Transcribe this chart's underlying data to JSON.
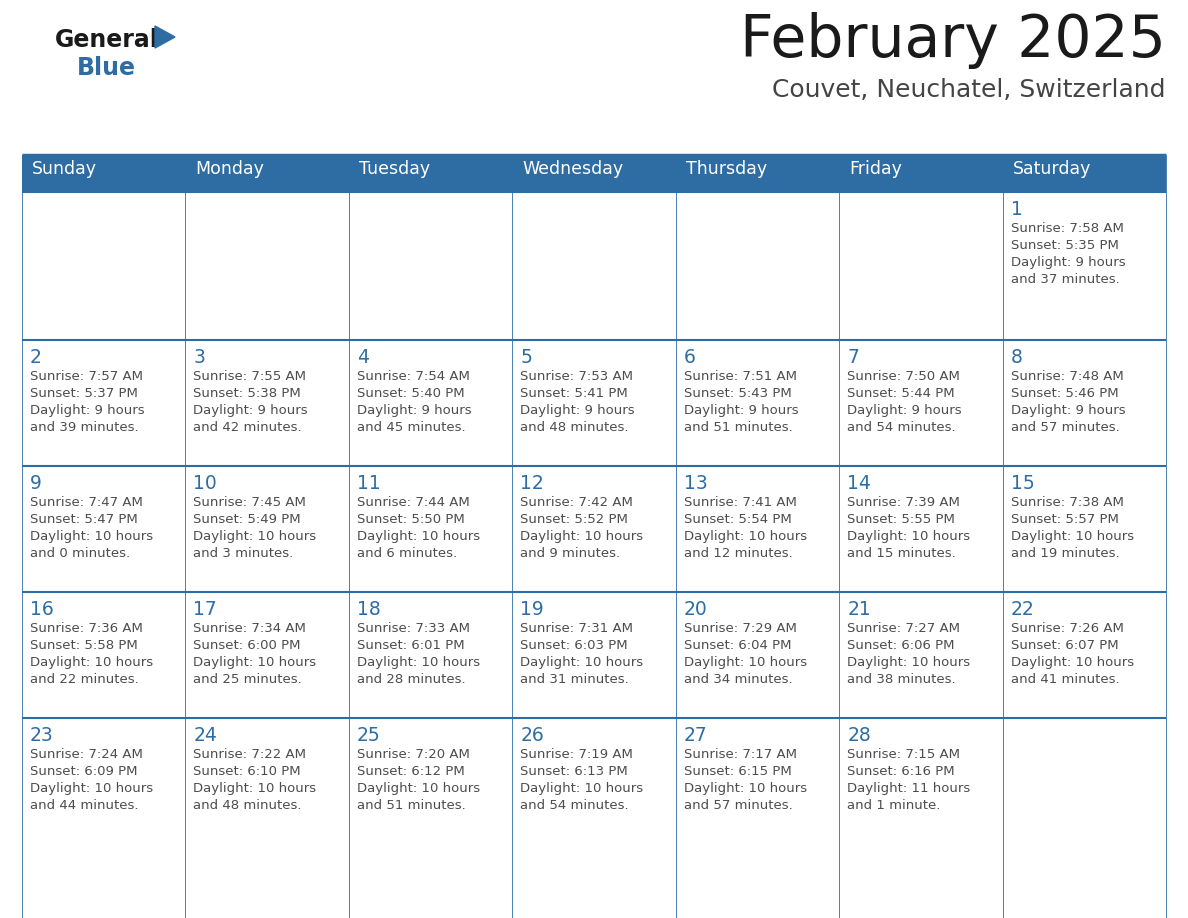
{
  "title": "February 2025",
  "subtitle": "Couvet, Neuchatel, Switzerland",
  "days_of_week": [
    "Sunday",
    "Monday",
    "Tuesday",
    "Wednesday",
    "Thursday",
    "Friday",
    "Saturday"
  ],
  "header_bg": "#2E6DA4",
  "header_text": "#FFFFFF",
  "cell_bg": "#FFFFFF",
  "border_color": "#2E6DA4",
  "day_number_color": "#2E6DA4",
  "cell_text_color": "#4D4D4D",
  "title_color": "#1A1A1A",
  "subtitle_color": "#444444",
  "logo_general_color": "#1A1A1A",
  "logo_blue_color": "#2E6DA4",
  "weeks": [
    [
      {
        "day": null,
        "info": null
      },
      {
        "day": null,
        "info": null
      },
      {
        "day": null,
        "info": null
      },
      {
        "day": null,
        "info": null
      },
      {
        "day": null,
        "info": null
      },
      {
        "day": null,
        "info": null
      },
      {
        "day": 1,
        "info": "Sunrise: 7:58 AM\nSunset: 5:35 PM\nDaylight: 9 hours\nand 37 minutes."
      }
    ],
    [
      {
        "day": 2,
        "info": "Sunrise: 7:57 AM\nSunset: 5:37 PM\nDaylight: 9 hours\nand 39 minutes."
      },
      {
        "day": 3,
        "info": "Sunrise: 7:55 AM\nSunset: 5:38 PM\nDaylight: 9 hours\nand 42 minutes."
      },
      {
        "day": 4,
        "info": "Sunrise: 7:54 AM\nSunset: 5:40 PM\nDaylight: 9 hours\nand 45 minutes."
      },
      {
        "day": 5,
        "info": "Sunrise: 7:53 AM\nSunset: 5:41 PM\nDaylight: 9 hours\nand 48 minutes."
      },
      {
        "day": 6,
        "info": "Sunrise: 7:51 AM\nSunset: 5:43 PM\nDaylight: 9 hours\nand 51 minutes."
      },
      {
        "day": 7,
        "info": "Sunrise: 7:50 AM\nSunset: 5:44 PM\nDaylight: 9 hours\nand 54 minutes."
      },
      {
        "day": 8,
        "info": "Sunrise: 7:48 AM\nSunset: 5:46 PM\nDaylight: 9 hours\nand 57 minutes."
      }
    ],
    [
      {
        "day": 9,
        "info": "Sunrise: 7:47 AM\nSunset: 5:47 PM\nDaylight: 10 hours\nand 0 minutes."
      },
      {
        "day": 10,
        "info": "Sunrise: 7:45 AM\nSunset: 5:49 PM\nDaylight: 10 hours\nand 3 minutes."
      },
      {
        "day": 11,
        "info": "Sunrise: 7:44 AM\nSunset: 5:50 PM\nDaylight: 10 hours\nand 6 minutes."
      },
      {
        "day": 12,
        "info": "Sunrise: 7:42 AM\nSunset: 5:52 PM\nDaylight: 10 hours\nand 9 minutes."
      },
      {
        "day": 13,
        "info": "Sunrise: 7:41 AM\nSunset: 5:54 PM\nDaylight: 10 hours\nand 12 minutes."
      },
      {
        "day": 14,
        "info": "Sunrise: 7:39 AM\nSunset: 5:55 PM\nDaylight: 10 hours\nand 15 minutes."
      },
      {
        "day": 15,
        "info": "Sunrise: 7:38 AM\nSunset: 5:57 PM\nDaylight: 10 hours\nand 19 minutes."
      }
    ],
    [
      {
        "day": 16,
        "info": "Sunrise: 7:36 AM\nSunset: 5:58 PM\nDaylight: 10 hours\nand 22 minutes."
      },
      {
        "day": 17,
        "info": "Sunrise: 7:34 AM\nSunset: 6:00 PM\nDaylight: 10 hours\nand 25 minutes."
      },
      {
        "day": 18,
        "info": "Sunrise: 7:33 AM\nSunset: 6:01 PM\nDaylight: 10 hours\nand 28 minutes."
      },
      {
        "day": 19,
        "info": "Sunrise: 7:31 AM\nSunset: 6:03 PM\nDaylight: 10 hours\nand 31 minutes."
      },
      {
        "day": 20,
        "info": "Sunrise: 7:29 AM\nSunset: 6:04 PM\nDaylight: 10 hours\nand 34 minutes."
      },
      {
        "day": 21,
        "info": "Sunrise: 7:27 AM\nSunset: 6:06 PM\nDaylight: 10 hours\nand 38 minutes."
      },
      {
        "day": 22,
        "info": "Sunrise: 7:26 AM\nSunset: 6:07 PM\nDaylight: 10 hours\nand 41 minutes."
      }
    ],
    [
      {
        "day": 23,
        "info": "Sunrise: 7:24 AM\nSunset: 6:09 PM\nDaylight: 10 hours\nand 44 minutes."
      },
      {
        "day": 24,
        "info": "Sunrise: 7:22 AM\nSunset: 6:10 PM\nDaylight: 10 hours\nand 48 minutes."
      },
      {
        "day": 25,
        "info": "Sunrise: 7:20 AM\nSunset: 6:12 PM\nDaylight: 10 hours\nand 51 minutes."
      },
      {
        "day": 26,
        "info": "Sunrise: 7:19 AM\nSunset: 6:13 PM\nDaylight: 10 hours\nand 54 minutes."
      },
      {
        "day": 27,
        "info": "Sunrise: 7:17 AM\nSunset: 6:15 PM\nDaylight: 10 hours\nand 57 minutes."
      },
      {
        "day": 28,
        "info": "Sunrise: 7:15 AM\nSunset: 6:16 PM\nDaylight: 11 hours\nand 1 minute."
      },
      {
        "day": null,
        "info": null
      }
    ]
  ]
}
